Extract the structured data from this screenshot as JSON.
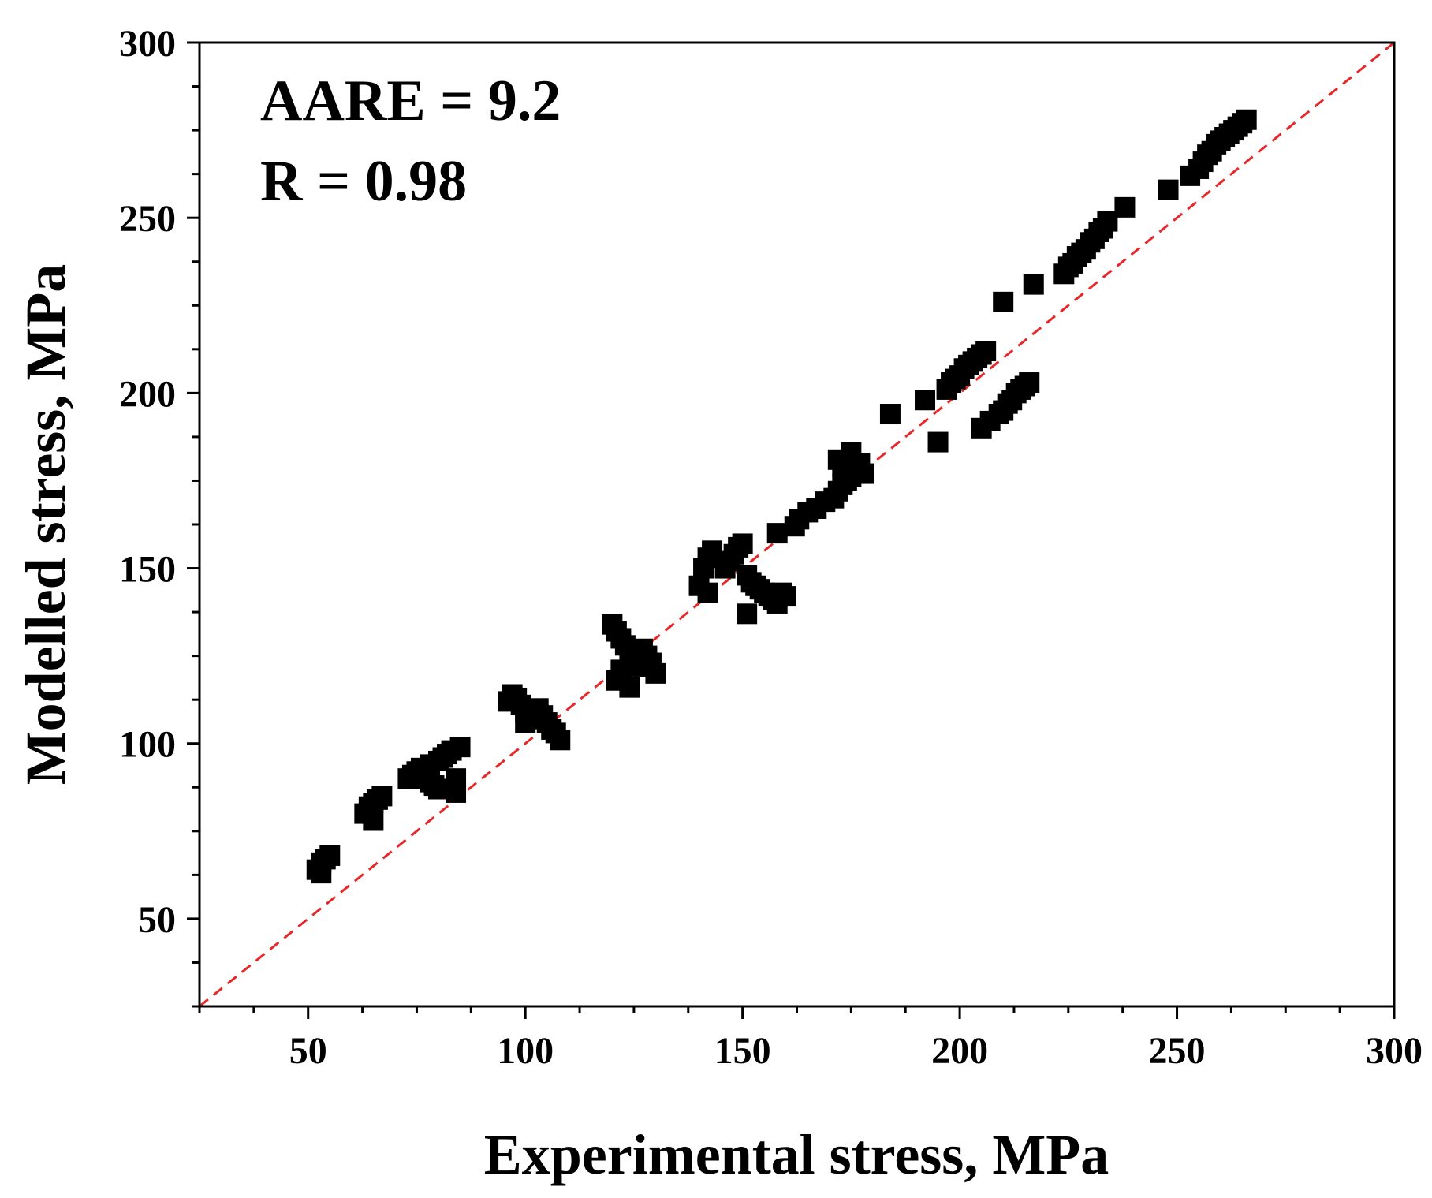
{
  "chart_data": {
    "type": "scatter",
    "xlabel": "Experimental stress, MPa",
    "ylabel": "Modelled stress, MPa",
    "xlim": [
      25,
      300
    ],
    "ylim": [
      25,
      300
    ],
    "xticks": [
      50,
      100,
      150,
      200,
      250,
      300
    ],
    "yticks": [
      50,
      100,
      150,
      200,
      250,
      300
    ],
    "x_tick_labels": [
      "50",
      "100",
      "150",
      "200",
      "250",
      "300"
    ],
    "y_tick_labels": [
      "50",
      "100",
      "150",
      "200",
      "250",
      "300"
    ],
    "annotations": {
      "aare": "AARE = 9.2",
      "r": "R = 0.98"
    },
    "reference_line": {
      "style": "dashed",
      "color": "#e8272a",
      "from": [
        25,
        25
      ],
      "to": [
        300,
        300
      ]
    },
    "marker": {
      "shape": "square",
      "color": "#000000"
    },
    "grid": false,
    "legend": "none",
    "points": [
      [
        52,
        64
      ],
      [
        53,
        66
      ],
      [
        54,
        67
      ],
      [
        55,
        68
      ],
      [
        53,
        63
      ],
      [
        63,
        80
      ],
      [
        64,
        82
      ],
      [
        65,
        83
      ],
      [
        66,
        84
      ],
      [
        67,
        85
      ],
      [
        65,
        78
      ],
      [
        73,
        90
      ],
      [
        74,
        91
      ],
      [
        75,
        92
      ],
      [
        76,
        91
      ],
      [
        77,
        90
      ],
      [
        78,
        89
      ],
      [
        79,
        88
      ],
      [
        80,
        87
      ],
      [
        76,
        93
      ],
      [
        78,
        94
      ],
      [
        80,
        95
      ],
      [
        81,
        96
      ],
      [
        82,
        97
      ],
      [
        83,
        98
      ],
      [
        85,
        99
      ],
      [
        84,
        90
      ],
      [
        84,
        86
      ],
      [
        96,
        112
      ],
      [
        97,
        114
      ],
      [
        98,
        113
      ],
      [
        99,
        111
      ],
      [
        100,
        109
      ],
      [
        101,
        108
      ],
      [
        102,
        107
      ],
      [
        103,
        110
      ],
      [
        104,
        108
      ],
      [
        105,
        106
      ],
      [
        106,
        104
      ],
      [
        107,
        103
      ],
      [
        108,
        101
      ],
      [
        100,
        106
      ],
      [
        120,
        134
      ],
      [
        121,
        132
      ],
      [
        122,
        130
      ],
      [
        123,
        128
      ],
      [
        124,
        126
      ],
      [
        125,
        124
      ],
      [
        126,
        122
      ],
      [
        127,
        127
      ],
      [
        128,
        125
      ],
      [
        129,
        123
      ],
      [
        130,
        120
      ],
      [
        121,
        118
      ],
      [
        122,
        121
      ],
      [
        124,
        116
      ],
      [
        140,
        145
      ],
      [
        141,
        150
      ],
      [
        142,
        153
      ],
      [
        143,
        155
      ],
      [
        142,
        143
      ],
      [
        146,
        150
      ],
      [
        147,
        152
      ],
      [
        148,
        154
      ],
      [
        149,
        156
      ],
      [
        150,
        157
      ],
      [
        151,
        148
      ],
      [
        152,
        146
      ],
      [
        153,
        145
      ],
      [
        154,
        144
      ],
      [
        155,
        143
      ],
      [
        156,
        142
      ],
      [
        157,
        141
      ],
      [
        158,
        140
      ],
      [
        159,
        143
      ],
      [
        160,
        142
      ],
      [
        151,
        137
      ],
      [
        158,
        160
      ],
      [
        162,
        162
      ],
      [
        163,
        164
      ],
      [
        165,
        166
      ],
      [
        167,
        167
      ],
      [
        169,
        169
      ],
      [
        171,
        170
      ],
      [
        172,
        172
      ],
      [
        173,
        174
      ],
      [
        174,
        175
      ],
      [
        175,
        176
      ],
      [
        176,
        178
      ],
      [
        177,
        180
      ],
      [
        178,
        177
      ],
      [
        172,
        181
      ],
      [
        173,
        179
      ],
      [
        175,
        183
      ],
      [
        184,
        194
      ],
      [
        192,
        198
      ],
      [
        195,
        186
      ],
      [
        197,
        201
      ],
      [
        198,
        203
      ],
      [
        199,
        204
      ],
      [
        200,
        205
      ],
      [
        201,
        207
      ],
      [
        202,
        208
      ],
      [
        203,
        209
      ],
      [
        204,
        210
      ],
      [
        205,
        211
      ],
      [
        206,
        212
      ],
      [
        205,
        190
      ],
      [
        207,
        192
      ],
      [
        209,
        194
      ],
      [
        210,
        195
      ],
      [
        211,
        197
      ],
      [
        212,
        198
      ],
      [
        213,
        200
      ],
      [
        214,
        201
      ],
      [
        215,
        202
      ],
      [
        216,
        203
      ],
      [
        210,
        226
      ],
      [
        217,
        231
      ],
      [
        224,
        234
      ],
      [
        225,
        236
      ],
      [
        226,
        237
      ],
      [
        227,
        239
      ],
      [
        228,
        240
      ],
      [
        229,
        241
      ],
      [
        230,
        243
      ],
      [
        231,
        244
      ],
      [
        232,
        246
      ],
      [
        233,
        247
      ],
      [
        234,
        249
      ],
      [
        238,
        253
      ],
      [
        248,
        258
      ],
      [
        253,
        262
      ],
      [
        255,
        264
      ],
      [
        256,
        266
      ],
      [
        257,
        268
      ],
      [
        258,
        269
      ],
      [
        259,
        271
      ],
      [
        260,
        272
      ],
      [
        261,
        273
      ],
      [
        262,
        274
      ],
      [
        263,
        275
      ],
      [
        264,
        276
      ],
      [
        265,
        277
      ],
      [
        266,
        278
      ]
    ]
  }
}
